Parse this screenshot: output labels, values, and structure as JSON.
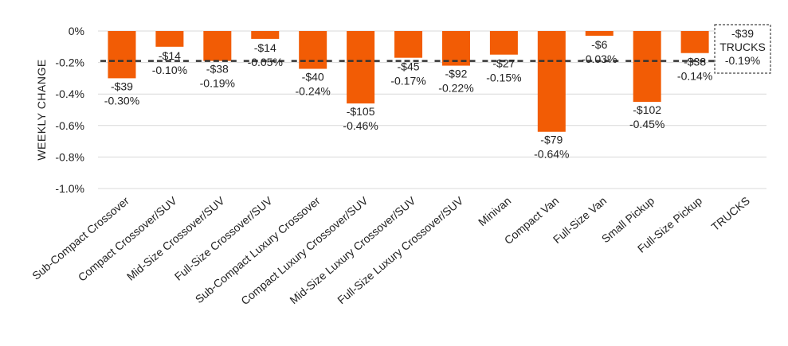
{
  "chart_data": {
    "type": "bar",
    "ylabel": "WEEKLY CHANGE",
    "ylim": [
      -1.0,
      0.0
    ],
    "yticks": [
      "0%",
      "-0.2%",
      "-0.4%",
      "-0.6%",
      "-0.8%",
      "-1.0%"
    ],
    "grid": true,
    "categories": [
      "Sub-Compact Crossover",
      "Compact Crossover/SUV",
      "Mid-Size Crossover/SUV",
      "Full-Size Crossover/SUV",
      "Sub-Compact Luxury Crossover",
      "Compact Luxury Crossover/SUV",
      "Mid-Size Luxury Crossover/SUV",
      "Full-Size Luxury Crossover/SUV",
      "Minivan",
      "Compact Van",
      "Full-Size Van",
      "Small Pickup",
      "Full-Size Pickup",
      "TRUCKS"
    ],
    "values": [
      -0.3,
      -0.1,
      -0.19,
      -0.05,
      -0.24,
      -0.46,
      -0.17,
      -0.22,
      -0.15,
      -0.64,
      -0.03,
      -0.45,
      -0.14,
      null
    ],
    "dollar_labels": [
      "-$39",
      "-$14",
      "-$38",
      "-$14",
      "-$40",
      "-$105",
      "-$45",
      "-$92",
      "-$27",
      "-$79",
      "-$6",
      "-$102",
      "-$38"
    ],
    "pct_labels": [
      "-0.30%",
      "-0.10%",
      "-0.19%",
      "-0.05%",
      "-0.24%",
      "-0.46%",
      "-0.17%",
      "-0.22%",
      "-0.15%",
      "-0.64%",
      "-0.03%",
      "-0.45%",
      "-0.14%"
    ],
    "average": {
      "value": -0.19,
      "lines": [
        "-$39",
        "TRUCKS",
        "-0.19%"
      ]
    },
    "colors": {
      "bar": "#f25c05",
      "average_line": "#333333"
    }
  }
}
